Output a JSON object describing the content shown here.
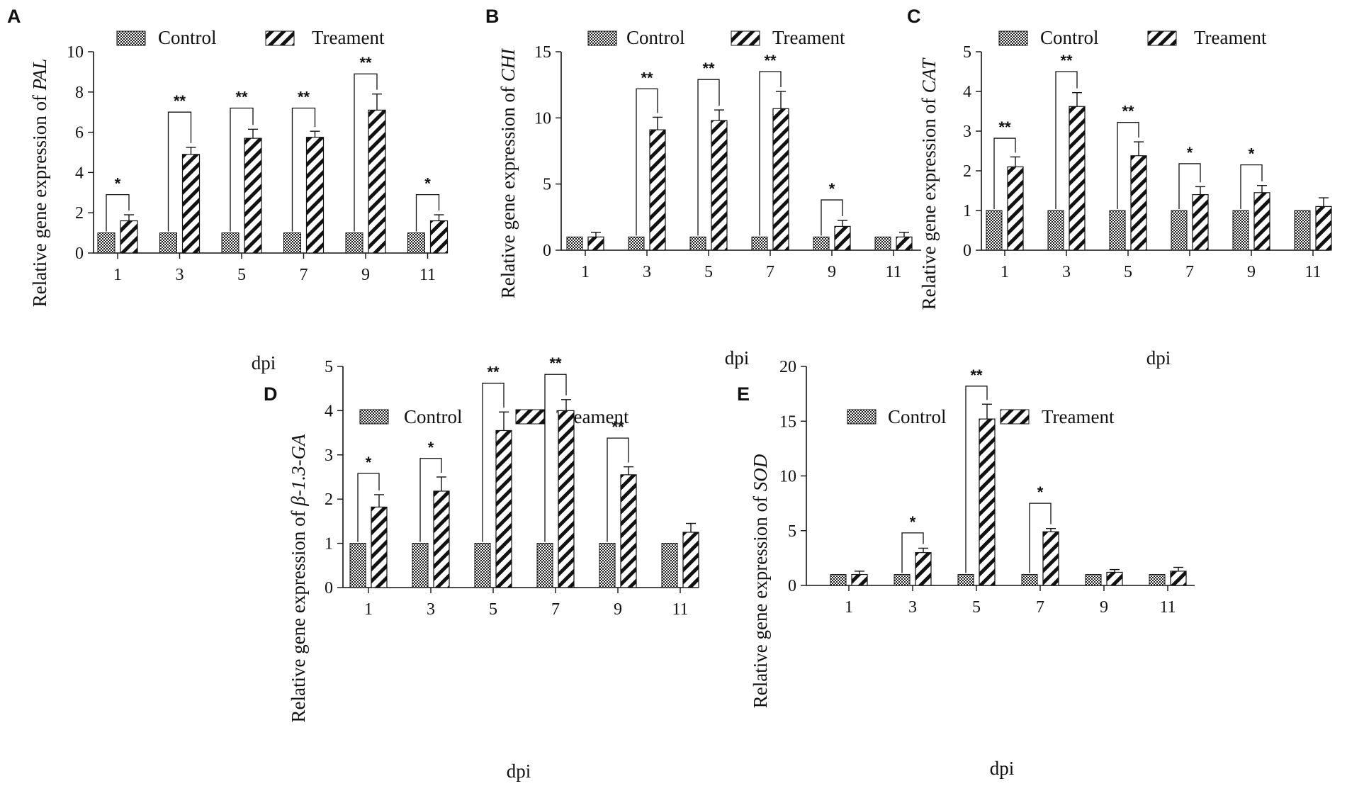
{
  "chart_data": [
    {
      "panel": "A",
      "type": "bar",
      "gene": "PAL",
      "ylabel_prefix": "Relative gene expression of ",
      "xlabel": "dpi",
      "categories": [
        "1",
        "3",
        "5",
        "7",
        "9",
        "11"
      ],
      "ylim": [
        0,
        10
      ],
      "yticks": [
        "0",
        "2",
        "4",
        "6",
        "8",
        "10"
      ],
      "legend": [
        "Control",
        "Treament"
      ],
      "series": [
        {
          "name": "Control",
          "values": [
            1,
            1,
            1,
            1,
            1,
            1
          ],
          "errors": [
            0,
            0,
            0,
            0,
            0,
            0
          ]
        },
        {
          "name": "Treament",
          "values": [
            1.6,
            4.9,
            5.7,
            5.75,
            7.1,
            1.6
          ],
          "errors": [
            0.3,
            0.35,
            0.45,
            0.3,
            0.8,
            0.3
          ]
        }
      ],
      "significance": [
        "*",
        "**",
        "**",
        "**",
        "**",
        "*"
      ],
      "sig_bracket_tops": [
        2.9,
        7.0,
        7.2,
        7.2,
        8.9,
        2.9
      ]
    },
    {
      "panel": "B",
      "type": "bar",
      "gene": "CHI",
      "ylabel_prefix": "Relative gene expression of ",
      "xlabel": "dpi",
      "categories": [
        "1",
        "3",
        "5",
        "7",
        "9",
        "11"
      ],
      "ylim": [
        0,
        15
      ],
      "yticks": [
        "0",
        "5",
        "10",
        "15"
      ],
      "legend": [
        "Control",
        "Treament"
      ],
      "series": [
        {
          "name": "Control",
          "values": [
            1,
            1,
            1,
            1,
            1,
            1
          ],
          "errors": [
            0,
            0,
            0,
            0,
            0,
            0
          ]
        },
        {
          "name": "Treament",
          "values": [
            1.0,
            9.1,
            9.8,
            10.7,
            1.8,
            1.0
          ],
          "errors": [
            0.35,
            0.95,
            0.8,
            1.3,
            0.45,
            0.35
          ]
        }
      ],
      "significance": [
        "",
        "**",
        "**",
        "**",
        "*",
        ""
      ],
      "sig_bracket_tops": [
        0,
        12.2,
        12.9,
        13.5,
        3.8,
        0
      ]
    },
    {
      "panel": "C",
      "type": "bar",
      "gene": "CAT",
      "ylabel_prefix": "Relative gene expression of ",
      "xlabel": "dpi",
      "categories": [
        "1",
        "3",
        "5",
        "7",
        "9",
        "11"
      ],
      "ylim": [
        0,
        5
      ],
      "yticks": [
        "0",
        "1",
        "2",
        "3",
        "4",
        "5"
      ],
      "legend": [
        "Control",
        "Treament"
      ],
      "series": [
        {
          "name": "Control",
          "values": [
            1,
            1,
            1,
            1,
            1,
            1
          ],
          "errors": [
            0,
            0,
            0,
            0,
            0,
            0
          ]
        },
        {
          "name": "Treament",
          "values": [
            2.1,
            3.62,
            2.38,
            1.4,
            1.45,
            1.1
          ],
          "errors": [
            0.25,
            0.35,
            0.35,
            0.2,
            0.18,
            0.22
          ]
        }
      ],
      "significance": [
        "**",
        "**",
        "**",
        "*",
        "*",
        ""
      ],
      "sig_bracket_tops": [
        2.82,
        4.5,
        3.22,
        2.18,
        2.15,
        0
      ]
    },
    {
      "panel": "D",
      "type": "bar",
      "gene": "β-1.3-GA",
      "ylabel_prefix": "Relative gene expression of ",
      "xlabel": "dpi",
      "categories": [
        "1",
        "3",
        "5",
        "7",
        "9",
        "11"
      ],
      "ylim": [
        0,
        5
      ],
      "yticks": [
        "0",
        "1",
        "2",
        "3",
        "4",
        "5"
      ],
      "legend": [
        "Control",
        "Treament"
      ],
      "series": [
        {
          "name": "Control",
          "values": [
            1,
            1,
            1,
            1,
            1,
            1
          ],
          "errors": [
            0,
            0,
            0,
            0,
            0,
            0
          ]
        },
        {
          "name": "Treament",
          "values": [
            1.82,
            2.18,
            3.55,
            4.0,
            2.55,
            1.25
          ],
          "errors": [
            0.28,
            0.32,
            0.42,
            0.25,
            0.18,
            0.2
          ]
        }
      ],
      "significance": [
        "*",
        "*",
        "**",
        "**",
        "**",
        ""
      ],
      "sig_bracket_tops": [
        2.58,
        2.92,
        4.62,
        4.82,
        3.38,
        0
      ]
    },
    {
      "panel": "E",
      "type": "bar",
      "gene": "SOD",
      "ylabel_prefix": "Relative gene expression of ",
      "xlabel": "dpi",
      "categories": [
        "1",
        "3",
        "5",
        "7",
        "9",
        "11"
      ],
      "ylim": [
        0,
        20
      ],
      "yticks": [
        "0",
        "5",
        "10",
        "15",
        "20"
      ],
      "legend": [
        "Control",
        "Treament"
      ],
      "series": [
        {
          "name": "Control",
          "values": [
            1,
            1,
            1,
            1,
            1,
            1
          ],
          "errors": [
            0,
            0,
            0,
            0,
            0,
            0
          ]
        },
        {
          "name": "Treament",
          "values": [
            1.0,
            3.0,
            15.2,
            4.9,
            1.2,
            1.3
          ],
          "errors": [
            0.3,
            0.4,
            1.35,
            0.3,
            0.25,
            0.35
          ]
        }
      ],
      "significance": [
        "",
        "*",
        "**",
        "*",
        "",
        ""
      ],
      "sig_bracket_tops": [
        0,
        4.8,
        18.2,
        7.5,
        0,
        0
      ]
    }
  ]
}
